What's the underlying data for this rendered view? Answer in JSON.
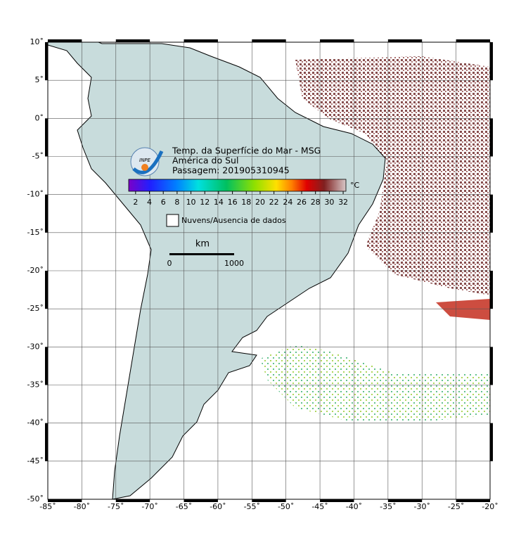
{
  "map": {
    "title": [
      "Temp. da Superfície do Mar - MSG",
      "América do Sul",
      "Passagem: 201905310945"
    ],
    "logo": "INPE",
    "lon_lim": [
      -85,
      -20
    ],
    "lat_lim": [
      10,
      -50
    ],
    "lon_ticks": [
      {
        "value": -85,
        "label": "-85˚"
      },
      {
        "value": -80,
        "label": "-80˚"
      },
      {
        "value": -75,
        "label": "-75˚"
      },
      {
        "value": -70,
        "label": "-70˚"
      },
      {
        "value": -65,
        "label": "-65˚"
      },
      {
        "value": -60,
        "label": "-60˚"
      },
      {
        "value": -55,
        "label": "-55˚"
      },
      {
        "value": -50,
        "label": "-50˚"
      },
      {
        "value": -45,
        "label": "-45˚"
      },
      {
        "value": -40,
        "label": "-40˚"
      },
      {
        "value": -35,
        "label": "-35˚"
      },
      {
        "value": -30,
        "label": "-30˚"
      },
      {
        "value": -25,
        "label": "-25˚"
      },
      {
        "value": -20,
        "label": "-20˚"
      }
    ],
    "lat_ticks": [
      {
        "value": 10,
        "label": "10˚"
      },
      {
        "value": 5,
        "label": "5˚"
      },
      {
        "value": 0,
        "label": "0˚"
      },
      {
        "value": -5,
        "label": "-5˚"
      },
      {
        "value": -10,
        "label": "-10˚"
      },
      {
        "value": -15,
        "label": "-15˚"
      },
      {
        "value": -20,
        "label": "-20˚"
      },
      {
        "value": -25,
        "label": "-25˚"
      },
      {
        "value": -30,
        "label": "-30˚"
      },
      {
        "value": -35,
        "label": "-35˚"
      },
      {
        "value": -40,
        "label": "-40˚"
      },
      {
        "value": -45,
        "label": "-45˚"
      },
      {
        "value": -50,
        "label": "-50˚"
      }
    ],
    "colorbar": {
      "range": [
        1,
        32.4
      ],
      "ticks": [
        2,
        4,
        6,
        8,
        10,
        12,
        14,
        16,
        18,
        20,
        22,
        24,
        26,
        28,
        30,
        32
      ],
      "unit": "°C"
    },
    "legend": "Nuvens/Ausencia de dados",
    "scale": {
      "unit": "km",
      "start": "0",
      "end": "1000"
    }
  }
}
